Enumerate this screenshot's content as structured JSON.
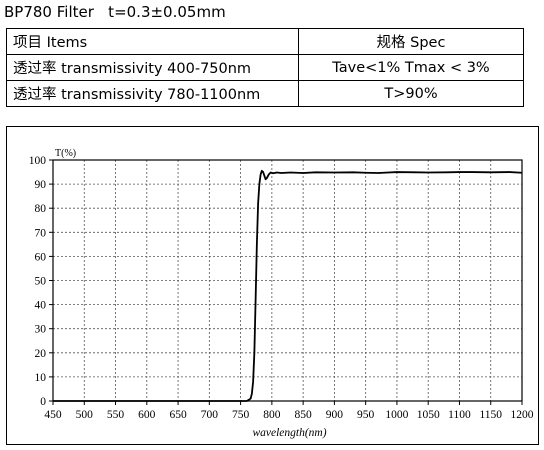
{
  "header": {
    "title": "BP780 Filter   t=0.3±0.05mm"
  },
  "spec_table": {
    "header": [
      "项目 Items",
      "规格 Spec"
    ],
    "rows": [
      [
        "透过率 transmissivity 400-750nm",
        "Tave<1% Tmax < 3%"
      ],
      [
        "透过率 transmissivity 780-1100nm",
        "T>90%"
      ]
    ]
  },
  "chart_data": {
    "type": "line",
    "title": "",
    "xlabel": "wavelength(nm)",
    "ylabel": "T(%)",
    "xlim": [
      450,
      1200
    ],
    "ylim": [
      0,
      100
    ],
    "xticks": [
      450,
      500,
      550,
      600,
      650,
      700,
      750,
      800,
      850,
      900,
      950,
      1000,
      1050,
      1100,
      1150,
      1200
    ],
    "yticks": [
      0,
      10,
      20,
      30,
      40,
      50,
      60,
      70,
      80,
      90,
      100
    ],
    "grid": true,
    "line_color": "#000000",
    "series": [
      {
        "x": [
          450,
          700,
          760,
          766,
          768,
          770,
          772,
          774,
          776,
          778,
          780,
          782,
          784,
          786,
          788,
          790,
          792,
          795,
          798,
          802,
          808,
          815,
          830,
          850,
          870,
          900,
          930,
          950,
          970,
          1000,
          1030,
          1050,
          1080,
          1100,
          1120,
          1150,
          1180,
          1200
        ],
        "y": [
          0,
          0,
          0,
          1,
          3,
          8,
          20,
          42,
          65,
          82,
          90,
          94,
          95.5,
          95,
          93.5,
          92,
          92.5,
          94,
          94.8,
          94.5,
          94.8,
          94.6,
          94.8,
          94.6,
          94.9,
          94.8,
          94.9,
          94.7,
          94.6,
          95,
          94.9,
          94.8,
          94.9,
          95,
          95,
          94.9,
          95,
          94.7
        ]
      }
    ]
  }
}
